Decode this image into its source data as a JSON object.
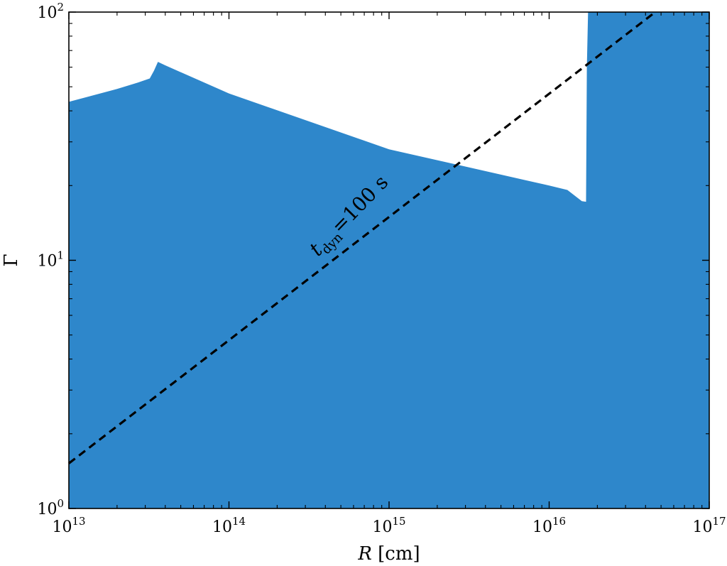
{
  "chart_data": {
    "type": "area",
    "xscale": "log",
    "yscale": "log",
    "xlim": [
      10000000000000.0,
      1e+17
    ],
    "ylim": [
      1,
      100
    ],
    "xlabel": {
      "var": "R",
      "unit": " [cm]"
    },
    "ylabel": "Γ",
    "x_ticks": [
      {
        "base": "10",
        "exp": "13"
      },
      {
        "base": "10",
        "exp": "14"
      },
      {
        "base": "10",
        "exp": "15"
      },
      {
        "base": "10",
        "exp": "16"
      },
      {
        "base": "10",
        "exp": "17"
      }
    ],
    "y_ticks": [
      {
        "base": "10",
        "exp": "0"
      },
      {
        "base": "10",
        "exp": "1"
      },
      {
        "base": "10",
        "exp": "2"
      }
    ],
    "fill_color": "#2e87cb",
    "line_color": "#000000",
    "region": {
      "upper_boundary": [
        [
          10000000000000.0,
          43.5
        ],
        [
          20000000000000.0,
          49
        ],
        [
          27000000000000.0,
          52
        ],
        [
          32000000000000.0,
          54
        ],
        [
          34000000000000.0,
          58
        ],
        [
          36000000000000.0,
          63
        ],
        [
          40000000000000.0,
          61
        ],
        [
          100000000000000.0,
          47
        ],
        [
          1000000000000000.0,
          28
        ],
        [
          1e+16,
          20
        ],
        [
          1.3e+16,
          19.2
        ],
        [
          1.6e+16,
          17.3
        ],
        [
          1.7e+16,
          17.2
        ],
        [
          1.72e+16,
          60
        ],
        [
          1.75e+16,
          100
        ]
      ]
    },
    "dashed_line": {
      "x": [
        10000000000000.0,
        4.6e+16
      ],
      "y": [
        1.52,
        100
      ]
    },
    "annotation": {
      "var": "t",
      "subscript": "dyn",
      "rest": "=100 s",
      "x": 600000000000000.0,
      "y": 14.5,
      "rotation_deg": -46
    }
  }
}
